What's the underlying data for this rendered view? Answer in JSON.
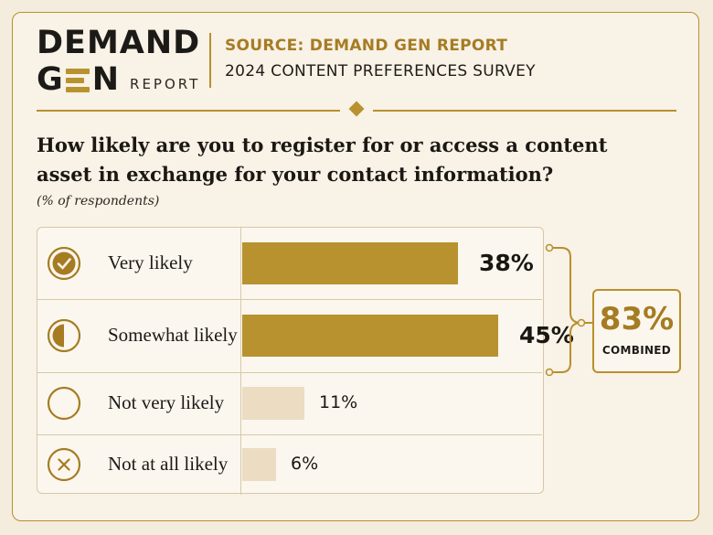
{
  "header": {
    "logo_line1": "DEMAND",
    "logo_gen_g": "G",
    "logo_gen_n": "N",
    "logo_report": "REPORT",
    "source": "SOURCE: DEMAND GEN REPORT",
    "survey": "2024 CONTENT PREFERENCES SURVEY"
  },
  "question": "How likely are you to register for or access a content asset in exchange for your contact information?",
  "subtitle": "(% of respondents)",
  "combined": {
    "value": "83%",
    "label": "COMBINED"
  },
  "colors": {
    "accent": "#b8922f",
    "accent_dark": "#a67c23",
    "light_bar": "#ebdcc2",
    "background": "#f4ecdd"
  },
  "chart_data": {
    "type": "bar",
    "orientation": "horizontal",
    "categories": [
      "Very likely",
      "Somewhat likely",
      "Not very likely",
      "Not at all likely"
    ],
    "values": [
      38,
      45,
      11,
      6
    ],
    "labels": [
      "38%",
      "45%",
      "11%",
      "6%"
    ],
    "icons": [
      "check-circle-icon",
      "half-circle-icon",
      "empty-circle-icon",
      "x-circle-icon"
    ],
    "xlim": [
      0,
      50
    ],
    "grid": false
  }
}
